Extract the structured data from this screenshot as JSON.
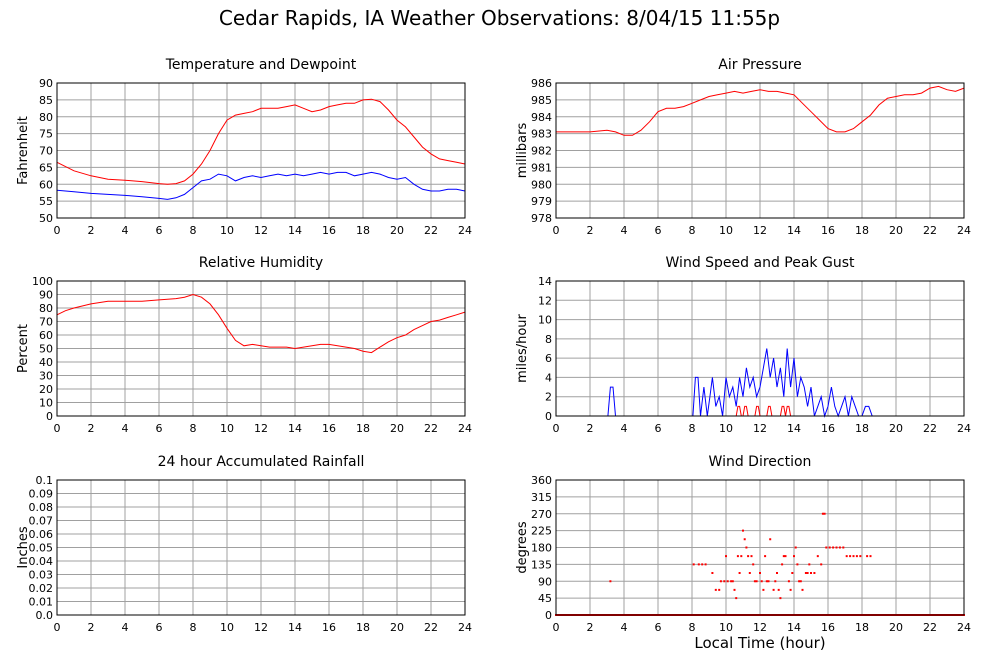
{
  "title": "Cedar Rapids, IA Weather Observations: 8/04/15 11:55p",
  "xlabel": "Local Time (hour)",
  "colors": {
    "red": "#ff0000",
    "blue": "#0000ff",
    "grid": "#a0a0a0",
    "frame": "#000000"
  },
  "chart_data": [
    {
      "id": "temp",
      "type": "line",
      "title": "Temperature and Dewpoint",
      "ylabel": "Fahrenheit",
      "xlim": [
        0,
        24
      ],
      "ylim": [
        50,
        90
      ],
      "xticks": [
        0,
        2,
        4,
        6,
        8,
        10,
        12,
        14,
        16,
        18,
        20,
        22,
        24
      ],
      "yticks": [
        50,
        55,
        60,
        65,
        70,
        75,
        80,
        85,
        90
      ],
      "grid": true,
      "series": [
        {
          "color": "#ff0000",
          "x": [
            0,
            1,
            2,
            3,
            4,
            5,
            6,
            6.5,
            7,
            7.5,
            8,
            8.5,
            9,
            9.5,
            10,
            10.5,
            11,
            11.5,
            12,
            12.5,
            13,
            13.5,
            14,
            14.5,
            15,
            15.5,
            16,
            16.5,
            17,
            17.5,
            18,
            18.5,
            19,
            19.5,
            20,
            20.5,
            21,
            21.5,
            22,
            22.5,
            23,
            23.5,
            24
          ],
          "y": [
            66.5,
            64,
            62.5,
            61.5,
            61.2,
            60.8,
            60.2,
            60,
            60.2,
            61,
            63,
            66,
            70,
            75,
            79,
            80.5,
            81,
            81.5,
            82.5,
            82.5,
            82.5,
            83,
            83.5,
            82.5,
            81.5,
            82,
            83,
            83.5,
            84,
            84,
            85,
            85.2,
            84.5,
            82,
            79,
            77,
            74,
            71,
            69,
            67.5,
            67,
            66.5,
            66
          ]
        },
        {
          "color": "#0000ff",
          "x": [
            0,
            1,
            2,
            3,
            4,
            5,
            6,
            6.5,
            7,
            7.5,
            8,
            8.5,
            9,
            9.5,
            10,
            10.5,
            11,
            11.5,
            12,
            12.5,
            13,
            13.5,
            14,
            14.5,
            15,
            15.5,
            16,
            16.5,
            17,
            17.5,
            18,
            18.5,
            19,
            19.5,
            20,
            20.5,
            21,
            21.5,
            22,
            22.5,
            23,
            23.5,
            24
          ],
          "y": [
            58.2,
            57.8,
            57.3,
            57,
            56.7,
            56.3,
            55.8,
            55.5,
            56,
            57,
            59,
            61,
            61.5,
            63,
            62.5,
            61,
            62,
            62.5,
            62,
            62.5,
            63,
            62.5,
            63,
            62.5,
            63,
            63.5,
            63,
            63.5,
            63.5,
            62.5,
            63,
            63.5,
            63,
            62,
            61.5,
            62,
            60,
            58.5,
            58,
            58,
            58.5,
            58.5,
            58
          ]
        }
      ]
    },
    {
      "id": "pres",
      "type": "line",
      "title": "Air Pressure",
      "ylabel": "millibars",
      "xlim": [
        0,
        24
      ],
      "ylim": [
        978,
        986
      ],
      "xticks": [
        0,
        2,
        4,
        6,
        8,
        10,
        12,
        14,
        16,
        18,
        20,
        22,
        24
      ],
      "yticks": [
        978,
        979,
        980,
        981,
        982,
        983,
        984,
        985,
        986
      ],
      "grid": true,
      "series": [
        {
          "color": "#ff0000",
          "x": [
            0,
            1,
            2,
            3,
            3.5,
            4,
            4.5,
            5,
            5.5,
            6,
            6.5,
            7,
            7.5,
            8,
            8.5,
            9,
            9.5,
            10,
            10.5,
            11,
            11.5,
            12,
            12.5,
            13,
            13.5,
            14,
            14.5,
            15,
            15.5,
            16,
            16.5,
            17,
            17.5,
            18,
            18.5,
            19,
            19.5,
            20,
            20.5,
            21,
            21.5,
            22,
            22.5,
            23,
            23.5,
            24
          ],
          "y": [
            983.1,
            983.1,
            983.1,
            983.2,
            983.1,
            982.9,
            982.9,
            983.2,
            983.7,
            984.3,
            984.5,
            984.5,
            984.6,
            984.8,
            985,
            985.2,
            985.3,
            985.4,
            985.5,
            985.4,
            985.5,
            985.6,
            985.5,
            985.5,
            985.4,
            985.3,
            984.8,
            984.3,
            983.8,
            983.3,
            983.1,
            983.1,
            983.3,
            983.7,
            984.1,
            984.7,
            985.1,
            985.2,
            985.3,
            985.3,
            985.4,
            985.7,
            985.8,
            985.6,
            985.5,
            985.7
          ]
        }
      ]
    },
    {
      "id": "rh",
      "type": "line",
      "title": "Relative Humidity",
      "ylabel": "Percent",
      "xlim": [
        0,
        24
      ],
      "ylim": [
        0,
        100
      ],
      "xticks": [
        0,
        2,
        4,
        6,
        8,
        10,
        12,
        14,
        16,
        18,
        20,
        22,
        24
      ],
      "yticks": [
        0,
        10,
        20,
        30,
        40,
        50,
        60,
        70,
        80,
        90,
        100
      ],
      "grid": true,
      "series": [
        {
          "color": "#ff0000",
          "x": [
            0,
            0.5,
            1,
            2,
            3,
            4,
            5,
            6,
            7,
            7.5,
            8,
            8.5,
            9,
            9.5,
            10,
            10.5,
            11,
            11.5,
            12,
            12.5,
            13,
            13.5,
            14,
            14.5,
            15,
            15.5,
            16,
            16.5,
            17,
            17.5,
            18,
            18.5,
            19,
            19.5,
            20,
            20.5,
            21,
            21.5,
            22,
            22.5,
            23,
            23.5,
            24
          ],
          "y": [
            75,
            78,
            80,
            83,
            85,
            85,
            85,
            86,
            87,
            88,
            90,
            88,
            83,
            75,
            65,
            56,
            52,
            53,
            52,
            51,
            51,
            51,
            50,
            51,
            52,
            53,
            53,
            52,
            51,
            50,
            48,
            47,
            51,
            55,
            58,
            60,
            64,
            67,
            70,
            71,
            73,
            75,
            77
          ]
        }
      ]
    },
    {
      "id": "wind",
      "type": "line",
      "title": "Wind Speed and Peak Gust",
      "ylabel": "miles/hour",
      "xlim": [
        0,
        24
      ],
      "ylim": [
        0,
        14
      ],
      "xticks": [
        0,
        2,
        4,
        6,
        8,
        10,
        12,
        14,
        16,
        18,
        20,
        22,
        24
      ],
      "yticks": [
        0,
        2,
        4,
        6,
        8,
        10,
        12,
        14
      ],
      "grid": true,
      "series": [
        {
          "color": "#0000ff",
          "x": [
            0,
            3.05,
            3.2,
            3.35,
            3.5,
            8.05,
            8.2,
            8.35,
            8.5,
            8.7,
            8.9,
            9.05,
            9.2,
            9.4,
            9.6,
            9.8,
            10,
            10.2,
            10.4,
            10.6,
            10.8,
            11,
            11.2,
            11.4,
            11.6,
            11.8,
            12,
            12.2,
            12.4,
            12.6,
            12.8,
            13,
            13.2,
            13.4,
            13.6,
            13.8,
            14,
            14.2,
            14.4,
            14.6,
            14.8,
            15,
            15.2,
            15.4,
            15.6,
            15.8,
            16,
            16.2,
            16.4,
            16.6,
            16.8,
            17,
            17.2,
            17.4,
            17.6,
            17.8,
            18,
            18.2,
            18.4,
            18.6,
            18.8,
            24
          ],
          "y": [
            0,
            0,
            3,
            3,
            0,
            0,
            4,
            4,
            0,
            3,
            0,
            2,
            4,
            1,
            2,
            0,
            4,
            2,
            3,
            1,
            4,
            2,
            5,
            3,
            4,
            2,
            3,
            5,
            7,
            4,
            6,
            3,
            5,
            2,
            7,
            3,
            6,
            2,
            4,
            3,
            1,
            3,
            0,
            1,
            2,
            0,
            1,
            3,
            1,
            0,
            1,
            2,
            0,
            2,
            1,
            0,
            0,
            1,
            1,
            0,
            0,
            0
          ]
        },
        {
          "color": "#ff0000",
          "x": [
            0,
            10.5,
            10.6,
            10.7,
            10.8,
            10.9,
            11.0,
            11.1,
            11.2,
            11.3,
            11.4,
            11.5,
            11.7,
            11.8,
            11.9,
            12.0,
            12.1,
            12.2,
            12.4,
            12.5,
            12.6,
            12.7,
            12.8,
            12.9,
            13.2,
            13.3,
            13.4,
            13.5,
            13.6,
            13.7,
            13.8,
            13.9,
            14.0,
            24
          ],
          "y": [
            0,
            0,
            0,
            1,
            1,
            0,
            0,
            1,
            1,
            0,
            0,
            0,
            0,
            1,
            1,
            0,
            0,
            0,
            0,
            1,
            1,
            0,
            0,
            0,
            0,
            1,
            1,
            0,
            1,
            1,
            0,
            0,
            0,
            0
          ]
        }
      ]
    },
    {
      "id": "rain",
      "type": "line",
      "title": "24 hour Accumulated Rainfall",
      "ylabel": "Inches",
      "xlim": [
        0,
        24
      ],
      "ylim": [
        0,
        0.1
      ],
      "xticks": [
        0,
        2,
        4,
        6,
        8,
        10,
        12,
        14,
        16,
        18,
        20,
        22,
        24
      ],
      "yticks": [
        "0.0",
        "0.01",
        "0.02",
        "0.03",
        "0.04",
        "0.05",
        "0.06",
        "0.07",
        "0.08",
        "0.09",
        "0.1"
      ],
      "grid": true,
      "series": [
        {
          "color": "#ff0000",
          "x": [
            0,
            24
          ],
          "y": [
            0,
            0
          ]
        }
      ]
    },
    {
      "id": "dir",
      "type": "scatter",
      "title": "Wind Direction",
      "ylabel": "degrees",
      "xlim": [
        0,
        24
      ],
      "ylim": [
        0,
        360
      ],
      "xticks": [
        0,
        2,
        4,
        6,
        8,
        10,
        12,
        14,
        16,
        18,
        20,
        22,
        24
      ],
      "yticks": [
        0,
        45,
        90,
        135,
        180,
        225,
        270,
        315,
        360
      ],
      "grid": true,
      "baseline": {
        "value": 0,
        "from": 0,
        "to": 24,
        "step": 0.06
      },
      "series": [
        {
          "color": "#ff0000",
          "points": [
            [
              3.2,
              90
            ],
            [
              8.1,
              135
            ],
            [
              8.4,
              135
            ],
            [
              8.6,
              135
            ],
            [
              8.8,
              135
            ],
            [
              9.2,
              112
            ],
            [
              9.4,
              67
            ],
            [
              9.6,
              67
            ],
            [
              9.7,
              90
            ],
            [
              9.9,
              90
            ],
            [
              10.0,
              157
            ],
            [
              10.1,
              90
            ],
            [
              10.3,
              90
            ],
            [
              10.4,
              90
            ],
            [
              10.5,
              67
            ],
            [
              10.6,
              45
            ],
            [
              10.7,
              157
            ],
            [
              10.8,
              112
            ],
            [
              10.9,
              157
            ],
            [
              11.0,
              225
            ],
            [
              11.1,
              202
            ],
            [
              11.2,
              180
            ],
            [
              11.3,
              157
            ],
            [
              11.4,
              112
            ],
            [
              11.5,
              157
            ],
            [
              11.6,
              135
            ],
            [
              11.7,
              90
            ],
            [
              11.8,
              90
            ],
            [
              12.0,
              112
            ],
            [
              12.1,
              90
            ],
            [
              12.2,
              67
            ],
            [
              12.3,
              157
            ],
            [
              12.4,
              90
            ],
            [
              12.5,
              90
            ],
            [
              12.6,
              202
            ],
            [
              12.8,
              67
            ],
            [
              12.9,
              90
            ],
            [
              13.0,
              112
            ],
            [
              13.1,
              67
            ],
            [
              13.2,
              45
            ],
            [
              13.3,
              135
            ],
            [
              13.4,
              157
            ],
            [
              13.5,
              157
            ],
            [
              13.7,
              90
            ],
            [
              13.8,
              67
            ],
            [
              13.9,
              112
            ],
            [
              14.0,
              157
            ],
            [
              14.1,
              180
            ],
            [
              14.2,
              135
            ],
            [
              14.3,
              90
            ],
            [
              14.4,
              90
            ],
            [
              14.5,
              67
            ],
            [
              14.7,
              112
            ],
            [
              14.8,
              112
            ],
            [
              14.9,
              135
            ],
            [
              15.0,
              112
            ],
            [
              15.2,
              112
            ],
            [
              15.4,
              157
            ],
            [
              15.6,
              135
            ],
            [
              15.7,
              270
            ],
            [
              15.8,
              270
            ],
            [
              15.9,
              180
            ],
            [
              16.1,
              180
            ],
            [
              16.3,
              180
            ],
            [
              16.5,
              180
            ],
            [
              16.7,
              180
            ],
            [
              16.9,
              180
            ],
            [
              17.1,
              157
            ],
            [
              17.3,
              157
            ],
            [
              17.5,
              157
            ],
            [
              17.7,
              157
            ],
            [
              17.9,
              157
            ],
            [
              18.3,
              157
            ],
            [
              18.5,
              157
            ]
          ]
        }
      ]
    }
  ]
}
